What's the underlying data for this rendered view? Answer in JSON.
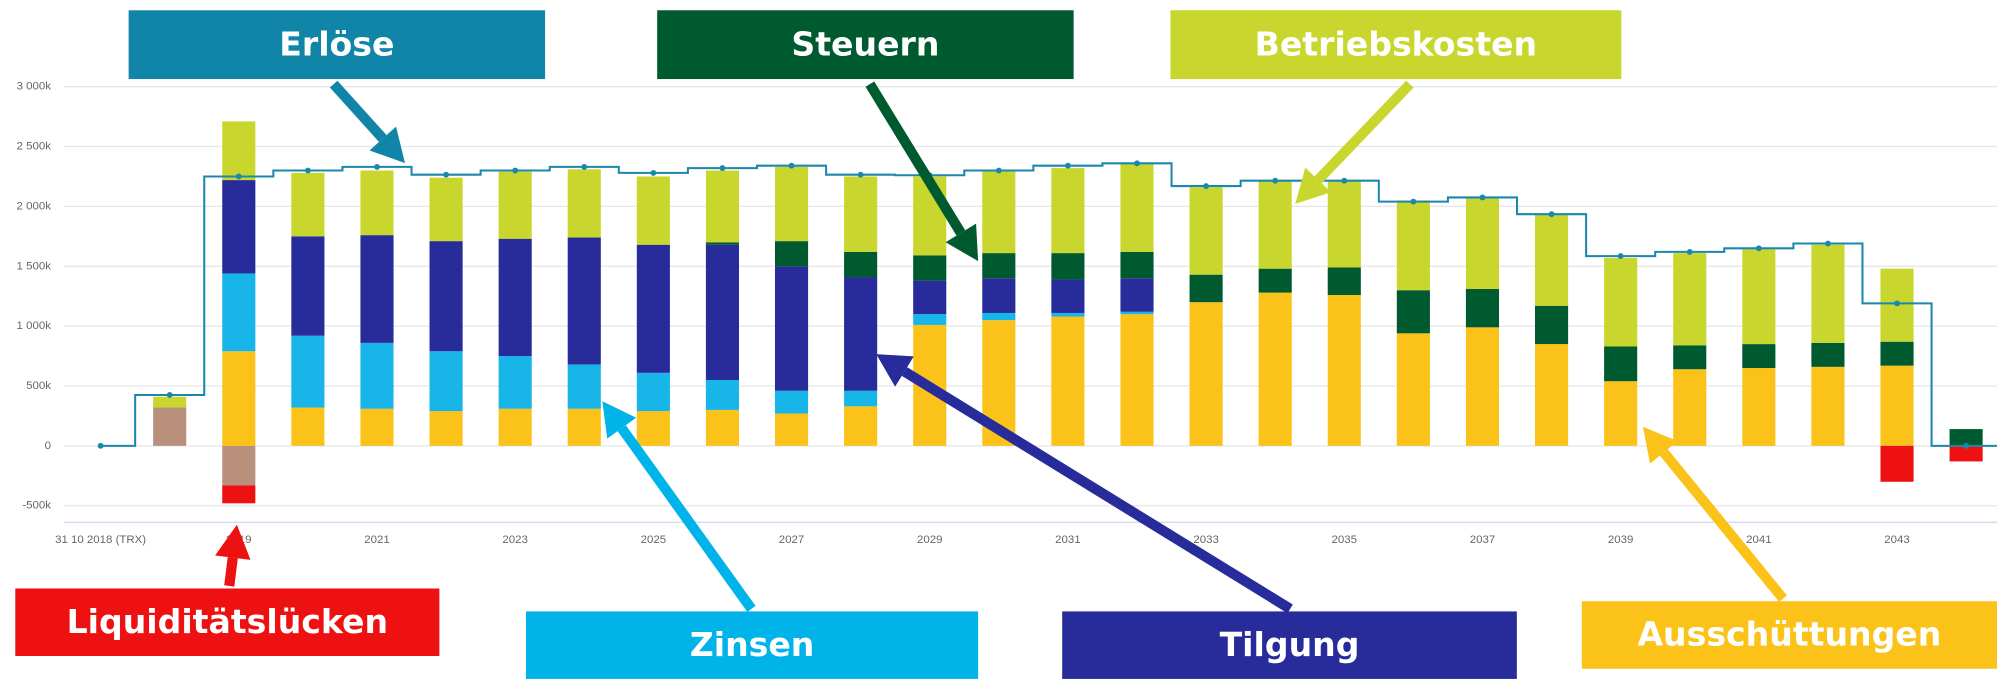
{
  "chart_data": {
    "type": "bar",
    "stacked": true,
    "categories": [
      "31 10 2018 (TRX)",
      null,
      "2019",
      null,
      "2021",
      null,
      "2023",
      null,
      "2025",
      null,
      "2027",
      null,
      "2029",
      null,
      "2031",
      null,
      "2033",
      null,
      "2035",
      null,
      "2037",
      null,
      "2039",
      null,
      "2041",
      null,
      "2043",
      null
    ],
    "series": [
      {
        "color": "#b8907c",
        "values": [
          0,
          320,
          -330,
          0,
          0,
          0,
          0,
          0,
          0,
          0,
          0,
          0,
          0,
          0,
          0,
          0,
          0,
          0,
          0,
          0,
          0,
          0,
          0,
          0,
          0,
          0,
          0,
          0
        ]
      },
      {
        "name": "Ausschüttungen",
        "color": "#fbc21a",
        "values": [
          0,
          0,
          790,
          320,
          310,
          290,
          310,
          310,
          290,
          300,
          270,
          330,
          1010,
          1050,
          1080,
          1100,
          1200,
          1280,
          1260,
          940,
          990,
          850,
          540,
          640,
          650,
          660,
          670,
          0
        ]
      },
      {
        "name": "Zinsen",
        "color": "#17b5e8",
        "values": [
          0,
          0,
          650,
          600,
          550,
          500,
          440,
          370,
          320,
          250,
          190,
          130,
          90,
          60,
          30,
          20,
          0,
          0,
          0,
          0,
          0,
          0,
          0,
          0,
          0,
          0,
          0,
          0
        ]
      },
      {
        "name": "Tilgung",
        "color": "#282b9a",
        "values": [
          0,
          0,
          780,
          830,
          900,
          920,
          980,
          1060,
          1070,
          1130,
          1040,
          950,
          280,
          290,
          280,
          280,
          0,
          0,
          0,
          0,
          0,
          0,
          0,
          0,
          0,
          0,
          0,
          0
        ]
      },
      {
        "name": "Steuern",
        "color": "#005a30",
        "values": [
          0,
          0,
          0,
          0,
          0,
          0,
          0,
          0,
          0,
          20,
          210,
          210,
          210,
          210,
          220,
          220,
          230,
          200,
          230,
          360,
          320,
          320,
          290,
          200,
          200,
          200,
          200,
          140
        ]
      },
      {
        "name": "Betriebskosten",
        "color": "#c8d62e",
        "values": [
          0,
          90,
          490,
          530,
          540,
          530,
          560,
          570,
          570,
          600,
          620,
          630,
          660,
          690,
          710,
          740,
          730,
          730,
          720,
          750,
          770,
          770,
          740,
          770,
          790,
          820,
          610,
          0
        ]
      },
      {
        "name": "Liquiditätslücken",
        "color": "#ee1111",
        "values": [
          0,
          0,
          -150,
          0,
          0,
          0,
          0,
          0,
          0,
          0,
          0,
          0,
          0,
          0,
          0,
          0,
          0,
          0,
          0,
          0,
          0,
          0,
          0,
          0,
          0,
          0,
          -300,
          -130
        ]
      },
      {
        "name": "Erlöse",
        "type": "line",
        "color": "#1b87ad",
        "values": [
          0,
          425,
          2250,
          2300,
          2330,
          2265,
          2300,
          2330,
          2280,
          2320,
          2340,
          2265,
          2260,
          2300,
          2340,
          2360,
          2170,
          2215,
          2215,
          2040,
          2075,
          1935,
          1585,
          1620,
          1650,
          1690,
          1190,
          0
        ]
      }
    ],
    "ylim": [
      -500,
      3000
    ],
    "yticks": [
      {
        "value": -500,
        "label": "-500k"
      },
      0,
      {
        "value": 500,
        "label": "500k"
      },
      {
        "value": 1000,
        "label": "1 000k"
      },
      {
        "value": 1500,
        "label": "1 500k"
      },
      {
        "value": 2000,
        "label": "2 000k"
      },
      {
        "value": 2500,
        "label": "2 500k"
      },
      {
        "value": 3000,
        "label": "3 000k"
      }
    ],
    "grid": true
  }
}
